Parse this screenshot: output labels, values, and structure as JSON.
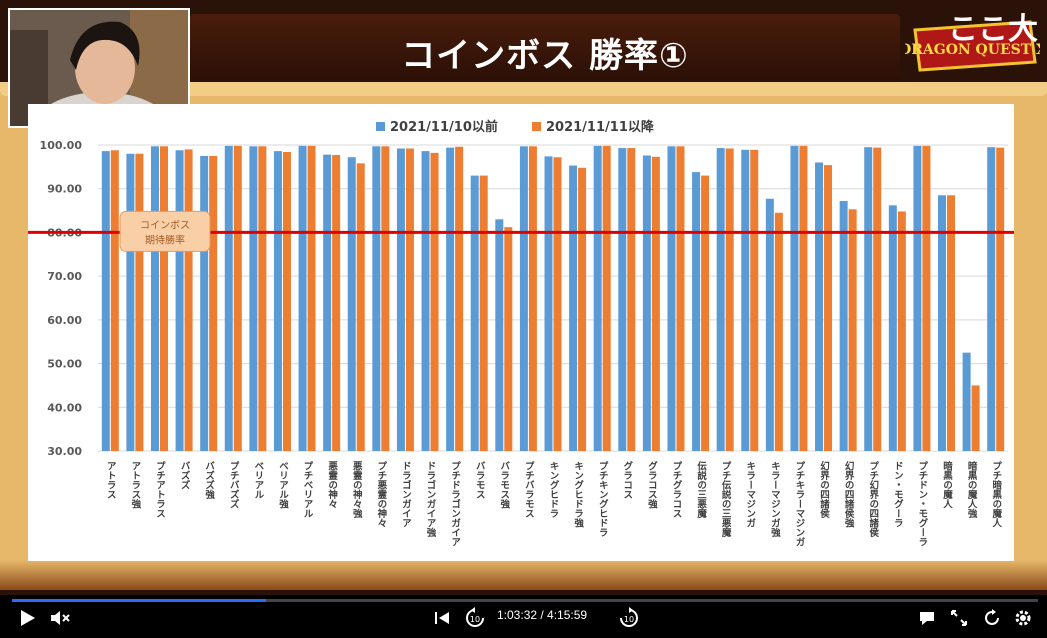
{
  "title": "コインボス 勝率①",
  "corner_text": "ここ大",
  "logo_text": "DRAGON QUEST X",
  "player": {
    "time_text": "1:03:32 / 4:15:59",
    "progress": 0.248,
    "seek_back_label": "10",
    "seek_fwd_label": "10"
  },
  "chart_data": {
    "type": "bar",
    "title": "",
    "legend": [
      "2021/11/10以前",
      "2021/11/11以降"
    ],
    "legend_position": "top-center",
    "colors": [
      "#5b9bd5",
      "#ed7d31"
    ],
    "ylim": [
      30,
      100
    ],
    "yticks": [
      "30.00",
      "40.00",
      "50.00",
      "60.00",
      "70.00",
      "80.00",
      "90.00",
      "100.00"
    ],
    "ytick_values": [
      30,
      40,
      50,
      60,
      70,
      80,
      90,
      100
    ],
    "reference_line": {
      "value": 80,
      "color": "#e00000",
      "label": "コインボス期待勝率",
      "label_line1": "コインボス",
      "label_line2": "期待勝率"
    },
    "categories": [
      "アトラス",
      "アトラス強",
      "プチアトラス",
      "バズズ",
      "バズズ強",
      "プチバズズ",
      "ベリアル",
      "ベリアル強",
      "プチベリアル",
      "悪霊の神々",
      "悪霊の神々強",
      "プチ悪霊の神々",
      "ドラゴンガイア",
      "ドラゴンガイア強",
      "プチドラゴンガイア",
      "バラモス",
      "バラモス強",
      "プチバラモス",
      "キングヒドラ",
      "キングヒドラ強",
      "プチキングヒドラ",
      "グラコス",
      "グラコス強",
      "プチグラコス",
      "伝説の三悪魔",
      "プチ伝説の三悪魔",
      "キラーマジンガ",
      "キラーマジンガ強",
      "プチキラーマジンガ",
      "幻界の四諸侯",
      "幻界の四諸侯強",
      "プチ幻界の四諸侯",
      "ドン・モグーラ",
      "プチドン・モグーラ",
      "暗黒の魔人",
      "暗黒の魔人強",
      "プチ暗黒の魔人"
    ],
    "series": [
      {
        "name": "2021/11/10以前",
        "values": [
          98.6,
          98.0,
          99.7,
          98.8,
          97.5,
          99.8,
          99.7,
          98.6,
          99.8,
          97.8,
          97.2,
          99.7,
          99.2,
          98.6,
          99.4,
          93.0,
          83.0,
          99.7,
          97.4,
          95.3,
          99.8,
          99.3,
          97.6,
          99.7,
          93.8,
          99.3,
          98.9,
          87.7,
          99.8,
          96.0,
          87.2,
          99.5,
          86.2,
          99.8,
          88.5,
          52.5,
          99.5
        ]
      },
      {
        "name": "2021/11/11以降",
        "values": [
          98.8,
          98.0,
          99.7,
          99.0,
          97.5,
          99.8,
          99.7,
          98.4,
          99.8,
          97.7,
          95.8,
          99.7,
          99.2,
          98.2,
          99.6,
          93.0,
          81.2,
          99.7,
          97.2,
          94.8,
          99.8,
          99.3,
          97.3,
          99.7,
          93.0,
          99.2,
          98.9,
          84.5,
          99.8,
          95.4,
          85.3,
          99.4,
          84.8,
          99.8,
          88.5,
          45.0,
          99.4
        ]
      }
    ]
  }
}
